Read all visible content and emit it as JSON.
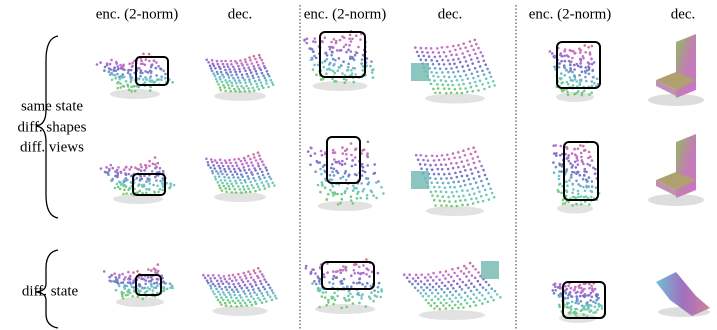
{
  "columns": [
    "enc. (2-norm)",
    "dec.",
    "enc. (2-norm)",
    "dec.",
    "enc. (2-norm)",
    "dec."
  ],
  "row_groups": [
    {
      "lines": [
        "same state",
        "diff. shapes",
        "diff. views"
      ]
    },
    {
      "lines": [
        "diff. state"
      ]
    }
  ]
}
